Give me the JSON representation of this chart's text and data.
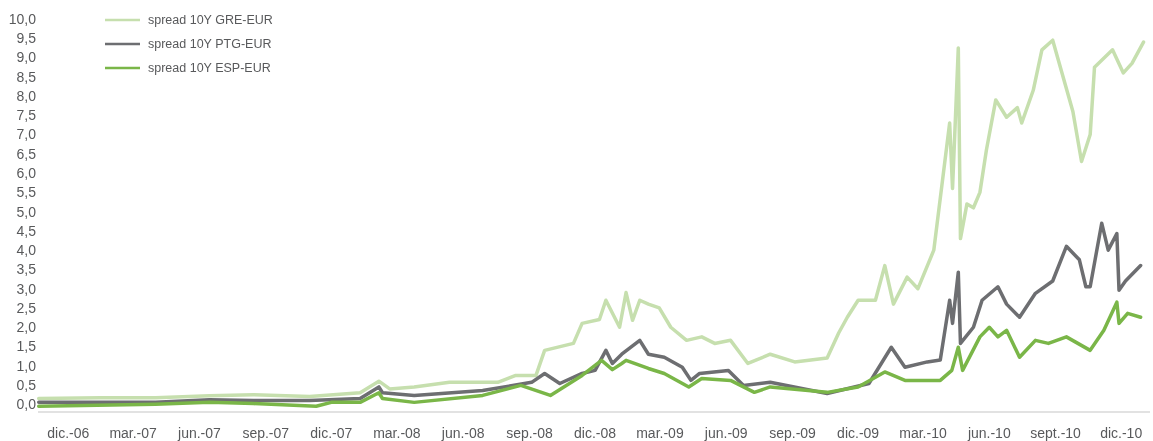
{
  "chart_data": {
    "type": "line",
    "legend": "top left",
    "grid": false,
    "marker": "none",
    "line_style": "solid",
    "xlim": [
      "2006-10-20",
      "2011-01-10"
    ],
    "ylim": [
      -0.2,
      10
    ],
    "xticks": [
      {
        "value": "2006-12-01",
        "label": "dic.-06"
      },
      {
        "value": "2007-03-01",
        "label": "mar.-07"
      },
      {
        "value": "2007-06-01",
        "label": "jun.-07"
      },
      {
        "value": "2007-09-01",
        "label": "sep.-07"
      },
      {
        "value": "2007-12-01",
        "label": "dic.-07"
      },
      {
        "value": "2008-03-01",
        "label": "mar.-08"
      },
      {
        "value": "2008-06-01",
        "label": "jun.-08"
      },
      {
        "value": "2008-09-01",
        "label": "sep.-08"
      },
      {
        "value": "2008-12-01",
        "label": "dic.-08"
      },
      {
        "value": "2009-03-01",
        "label": "mar.-09"
      },
      {
        "value": "2009-06-01",
        "label": "jun.-09"
      },
      {
        "value": "2009-09-01",
        "label": "sep.-09"
      },
      {
        "value": "2009-12-01",
        "label": "dic.-09"
      },
      {
        "value": "2010-03-01",
        "label": "mar.-10"
      },
      {
        "value": "2010-06-01",
        "label": "jun.-10"
      },
      {
        "value": "2010-09-01",
        "label": "sept.-10"
      },
      {
        "value": "2010-12-01",
        "label": "dic.-10"
      }
    ],
    "yticks": [
      {
        "value": 0,
        "label": "0,0"
      },
      {
        "value": 0.5,
        "label": "0,5"
      },
      {
        "value": 1,
        "label": "1,0"
      },
      {
        "value": 1.5,
        "label": "1,5"
      },
      {
        "value": 2,
        "label": "2,0"
      },
      {
        "value": 2.5,
        "label": "2,5"
      },
      {
        "value": 3,
        "label": "3,0"
      },
      {
        "value": 3.5,
        "label": "3,5"
      },
      {
        "value": 4,
        "label": "4,0"
      },
      {
        "value": 4.5,
        "label": "4,5"
      },
      {
        "value": 5,
        "label": "5,0"
      },
      {
        "value": 5.5,
        "label": "5,5"
      },
      {
        "value": 6,
        "label": "6,0"
      },
      {
        "value": 6.5,
        "label": "6,5"
      },
      {
        "value": 7,
        "label": "7,0"
      },
      {
        "value": 7.5,
        "label": "7,5"
      },
      {
        "value": 8,
        "label": "8,0"
      },
      {
        "value": 8.5,
        "label": "8,5"
      },
      {
        "value": 9,
        "label": "9,0"
      },
      {
        "value": 9.5,
        "label": "9,5"
      },
      {
        "value": 10,
        "label": "10,0"
      }
    ],
    "series": [
      {
        "name": "spread 10Y GRE-EUR",
        "color": "#c6dfae",
        "x": [
          "2006-10-21",
          "2007-01-15",
          "2007-04-01",
          "2007-06-15",
          "2007-08-15",
          "2007-11-01",
          "2008-01-10",
          "2008-02-05",
          "2008-02-20",
          "2008-03-25",
          "2008-05-13",
          "2008-07-19",
          "2008-08-13",
          "2008-09-10",
          "2008-09-22",
          "2008-11-01",
          "2008-11-13",
          "2008-12-07",
          "2008-12-16",
          "2009-01-04",
          "2009-01-13",
          "2009-01-22",
          "2009-02-01",
          "2009-02-13",
          "2009-02-28",
          "2009-03-16",
          "2009-04-07",
          "2009-04-28",
          "2009-05-16",
          "2009-06-07",
          "2009-07-01",
          "2009-08-01",
          "2009-09-04",
          "2009-10-19",
          "2009-11-04",
          "2009-11-16",
          "2009-12-01",
          "2009-12-25",
          "2010-01-07",
          "2010-01-19",
          "2010-02-07",
          "2010-02-22",
          "2010-03-16",
          "2010-04-07",
          "2010-04-11",
          "2010-04-19",
          "2010-04-22",
          "2010-04-25",
          "2010-05-01",
          "2010-05-10",
          "2010-05-19",
          "2010-05-28",
          "2010-06-10",
          "2010-06-25",
          "2010-07-10",
          "2010-07-16",
          "2010-08-01",
          "2010-08-13",
          "2010-08-28",
          "2010-09-25",
          "2010-10-07",
          "2010-10-19",
          "2010-10-25",
          "2010-11-19",
          "2010-12-04",
          "2010-12-16",
          "2011-01-01"
        ],
        "values": [
          0.15,
          0.17,
          0.17,
          0.22,
          0.25,
          0.2,
          0.3,
          0.6,
          0.4,
          0.45,
          0.57,
          0.57,
          0.75,
          0.75,
          1.4,
          1.58,
          2.1,
          2.2,
          2.7,
          2.0,
          2.9,
          2.18,
          2.7,
          2.6,
          2.5,
          2.0,
          1.66,
          1.75,
          1.58,
          1.66,
          1.06,
          1.3,
          1.1,
          1.2,
          1.85,
          2.26,
          2.7,
          2.7,
          3.6,
          2.6,
          3.3,
          3.0,
          4.0,
          7.3,
          5.6,
          9.25,
          4.3,
          4.6,
          5.2,
          5.1,
          5.5,
          6.6,
          7.9,
          7.45,
          7.7,
          7.3,
          8.15,
          9.2,
          9.45,
          7.6,
          6.3,
          7.0,
          8.75,
          9.2,
          8.6,
          8.85,
          9.4
        ]
      },
      {
        "name": "spread 10Y PTG-EUR",
        "color": "#6d6e71",
        "x": [
          "2006-10-21",
          "2007-04-01",
          "2007-06-15",
          "2007-08-15",
          "2007-11-01",
          "2008-01-10",
          "2008-02-05",
          "2008-02-10",
          "2008-03-25",
          "2008-06-28",
          "2008-09-04",
          "2008-09-22",
          "2008-10-13",
          "2008-11-13",
          "2008-12-01",
          "2008-12-16",
          "2008-12-25",
          "2009-01-07",
          "2009-02-01",
          "2009-02-13",
          "2009-03-07",
          "2009-04-01",
          "2009-04-13",
          "2009-04-25",
          "2009-06-04",
          "2009-06-25",
          "2009-08-01",
          "2009-10-19",
          "2009-12-16",
          "2010-01-16",
          "2010-02-04",
          "2010-03-07",
          "2010-03-25",
          "2010-04-07",
          "2010-04-11",
          "2010-04-19",
          "2010-04-22",
          "2010-05-10",
          "2010-05-22",
          "2010-06-13",
          "2010-06-25",
          "2010-07-13",
          "2010-08-04",
          "2010-08-28",
          "2010-09-16",
          "2010-10-04",
          "2010-10-13",
          "2010-10-19",
          "2010-11-04",
          "2010-11-13",
          "2010-11-25",
          "2010-11-28",
          "2010-12-07",
          "2010-12-28"
        ],
        "values": [
          0.05,
          0.05,
          0.12,
          0.1,
          0.1,
          0.15,
          0.45,
          0.3,
          0.23,
          0.36,
          0.57,
          0.8,
          0.54,
          0.8,
          0.88,
          1.4,
          1.06,
          1.3,
          1.66,
          1.3,
          1.22,
          0.96,
          0.62,
          0.8,
          0.88,
          0.49,
          0.57,
          0.28,
          0.54,
          1.48,
          0.96,
          1.1,
          1.15,
          2.7,
          2.1,
          3.43,
          1.58,
          2.0,
          2.7,
          3.05,
          2.6,
          2.26,
          2.88,
          3.2,
          4.1,
          3.75,
          3.05,
          3.05,
          4.7,
          4.0,
          4.43,
          2.96,
          3.2,
          3.6
        ]
      },
      {
        "name": "spread 10Y ESP-EUR",
        "color": "#7ab648",
        "x": [
          "2006-10-21",
          "2007-04-01",
          "2007-06-15",
          "2007-08-15",
          "2007-11-10",
          "2007-12-01",
          "2008-01-10",
          "2008-02-05",
          "2008-02-10",
          "2008-03-25",
          "2008-06-28",
          "2008-08-20",
          "2008-09-30",
          "2008-11-13",
          "2008-12-10",
          "2008-12-25",
          "2009-01-07",
          "2009-01-13",
          "2009-02-13",
          "2009-03-07",
          "2009-04-10",
          "2009-04-28",
          "2009-06-07",
          "2009-07-10",
          "2009-08-01",
          "2009-10-19",
          "2009-12-01",
          "2010-01-07",
          "2010-02-04",
          "2010-03-25",
          "2010-04-10",
          "2010-04-19",
          "2010-04-25",
          "2010-05-19",
          "2010-06-01",
          "2010-06-13",
          "2010-06-25",
          "2010-07-13",
          "2010-08-04",
          "2010-08-22",
          "2010-09-16",
          "2010-10-19",
          "2010-11-07",
          "2010-11-25",
          "2010-11-28",
          "2010-12-10",
          "2010-12-28"
        ],
        "values": [
          -0.05,
          0.0,
          0.05,
          0.02,
          -0.05,
          0.05,
          0.05,
          0.3,
          0.15,
          0.05,
          0.23,
          0.49,
          0.23,
          0.75,
          1.14,
          0.9,
          1.06,
          1.14,
          0.93,
          0.8,
          0.45,
          0.67,
          0.62,
          0.31,
          0.45,
          0.31,
          0.45,
          0.84,
          0.62,
          0.62,
          0.88,
          1.48,
          0.88,
          1.75,
          2.0,
          1.75,
          1.92,
          1.22,
          1.66,
          1.58,
          1.75,
          1.4,
          1.92,
          2.65,
          2.1,
          2.36,
          2.26
        ]
      }
    ]
  }
}
